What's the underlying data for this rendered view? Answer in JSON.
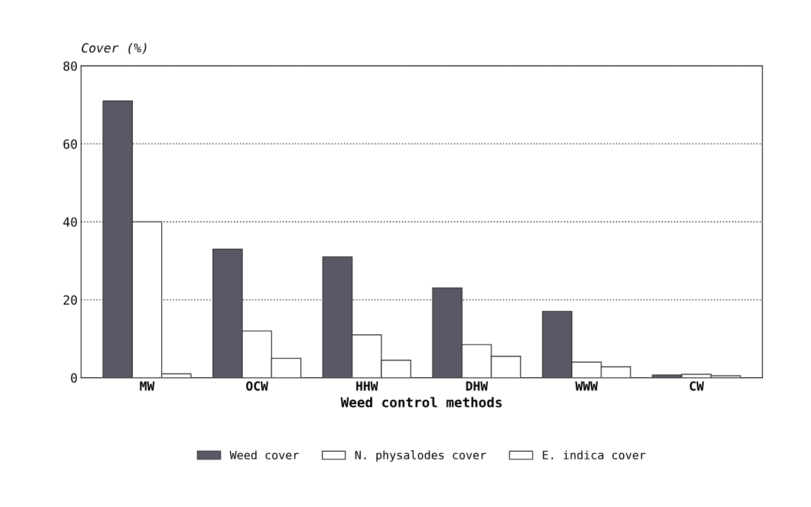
{
  "chart_data": {
    "type": "bar",
    "ylabel": "Cover (%)",
    "xlabel": "Weed control methods",
    "categories": [
      "MW",
      "OCW",
      "HHW",
      "DHW",
      "WWW",
      "CW"
    ],
    "series": [
      {
        "name": "Weed cover",
        "color": "#5a5866",
        "values": [
          71,
          33,
          31,
          23,
          17,
          0.7
        ]
      },
      {
        "name": "N. physalodes cover",
        "color": "#ffffff",
        "values": [
          40,
          12,
          11,
          8.5,
          4,
          0.9
        ]
      },
      {
        "name": "E. indica cover",
        "color": "#ffffff",
        "values": [
          1,
          5,
          4.5,
          5.5,
          2.8,
          0.5
        ]
      }
    ],
    "ylim": [
      0,
      80
    ],
    "yticks": [
      0,
      20,
      40,
      60,
      80
    ],
    "grid": "y",
    "legend": "bottom"
  }
}
